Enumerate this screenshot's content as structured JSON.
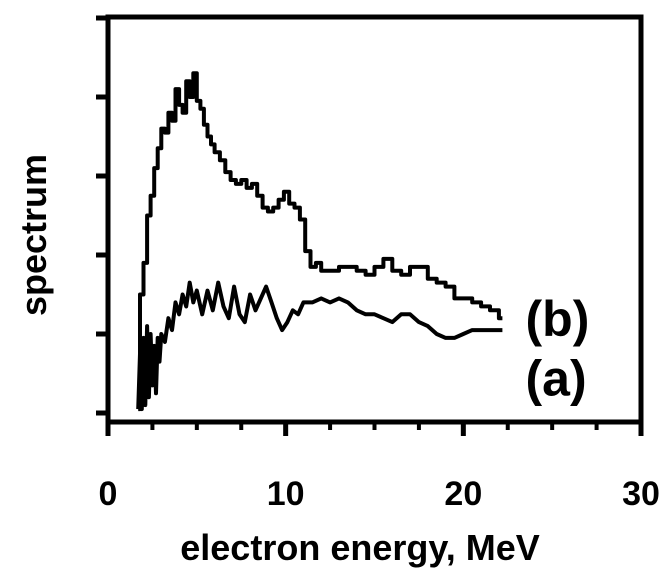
{
  "chart_data": {
    "type": "line",
    "title": "",
    "xlabel": "electron energy, MeV",
    "ylabel": "spectrum",
    "xlim": [
      0,
      30
    ],
    "ylim": [
      0,
      1
    ],
    "grid": false,
    "x_ticks": [
      0,
      10,
      20,
      30
    ],
    "x_tick_labels": [
      "0",
      "10",
      "20",
      "30"
    ],
    "y_ticks": [
      0,
      0.2,
      0.4,
      0.6,
      0.8,
      1.0
    ],
    "y_tick_labels": [],
    "series": [
      {
        "name": "(b)",
        "step": true,
        "x": [
          1.7,
          1.8,
          2.0,
          2.2,
          2.4,
          2.6,
          2.8,
          3.0,
          3.2,
          3.4,
          3.6,
          3.8,
          4.0,
          4.2,
          4.4,
          4.6,
          4.8,
          5.0,
          5.2,
          5.4,
          5.6,
          5.8,
          6.0,
          6.3,
          6.6,
          6.9,
          7.2,
          7.5,
          7.8,
          8.1,
          8.4,
          8.7,
          9.0,
          9.3,
          9.6,
          9.9,
          10.2,
          10.5,
          10.8,
          11.1,
          11.4,
          11.7,
          12.0,
          12.5,
          13.0,
          13.5,
          14.0,
          14.5,
          15.0,
          15.5,
          16.0,
          16.5,
          17.0,
          17.5,
          18.0,
          18.5,
          19.0,
          19.5,
          20.0,
          20.5,
          21.0,
          21.5,
          22.0,
          22.2
        ],
        "y": [
          0.01,
          0.3,
          0.38,
          0.5,
          0.55,
          0.62,
          0.67,
          0.72,
          0.71,
          0.76,
          0.74,
          0.82,
          0.78,
          0.76,
          0.84,
          0.8,
          0.86,
          0.79,
          0.77,
          0.73,
          0.7,
          0.68,
          0.66,
          0.64,
          0.61,
          0.59,
          0.58,
          0.59,
          0.57,
          0.58,
          0.55,
          0.52,
          0.51,
          0.52,
          0.54,
          0.56,
          0.53,
          0.52,
          0.49,
          0.41,
          0.37,
          0.38,
          0.36,
          0.36,
          0.37,
          0.37,
          0.36,
          0.35,
          0.37,
          0.39,
          0.36,
          0.35,
          0.37,
          0.37,
          0.34,
          0.33,
          0.32,
          0.29,
          0.29,
          0.28,
          0.27,
          0.26,
          0.24,
          0.24
        ]
      },
      {
        "name": "(a)",
        "step": false,
        "x": [
          1.7,
          1.8,
          1.9,
          2.0,
          2.1,
          2.2,
          2.3,
          2.4,
          2.5,
          2.6,
          2.7,
          2.8,
          2.9,
          3.0,
          3.2,
          3.4,
          3.6,
          3.8,
          4.0,
          4.2,
          4.4,
          4.6,
          4.8,
          5.0,
          5.3,
          5.6,
          5.9,
          6.2,
          6.5,
          6.8,
          7.1,
          7.4,
          7.7,
          8.0,
          8.3,
          8.6,
          8.9,
          9.2,
          9.5,
          9.8,
          10.1,
          10.4,
          10.7,
          11.0,
          11.5,
          12.0,
          12.5,
          13.0,
          13.5,
          14.0,
          14.5,
          15.0,
          15.5,
          16.0,
          16.5,
          17.0,
          17.5,
          18.0,
          18.5,
          19.0,
          19.5,
          20.0,
          20.5,
          21.0,
          21.5,
          22.0,
          22.2
        ],
        "y": [
          0.01,
          0.15,
          0.01,
          0.19,
          0.02,
          0.22,
          0.04,
          0.2,
          0.07,
          0.17,
          0.05,
          0.19,
          0.13,
          0.2,
          0.18,
          0.24,
          0.21,
          0.28,
          0.25,
          0.3,
          0.27,
          0.33,
          0.28,
          0.31,
          0.25,
          0.31,
          0.26,
          0.33,
          0.27,
          0.24,
          0.32,
          0.25,
          0.23,
          0.3,
          0.26,
          0.29,
          0.32,
          0.28,
          0.24,
          0.21,
          0.23,
          0.26,
          0.25,
          0.28,
          0.28,
          0.29,
          0.28,
          0.29,
          0.28,
          0.26,
          0.25,
          0.25,
          0.24,
          0.23,
          0.25,
          0.25,
          0.23,
          0.22,
          0.2,
          0.19,
          0.19,
          0.2,
          0.21,
          0.21,
          0.21,
          0.21,
          0.21
        ]
      }
    ],
    "series_labels": [
      {
        "text": "(b)",
        "x": 23.5,
        "y": 0.24
      },
      {
        "text": "(a)",
        "x": 23.5,
        "y": 0.09
      }
    ]
  }
}
